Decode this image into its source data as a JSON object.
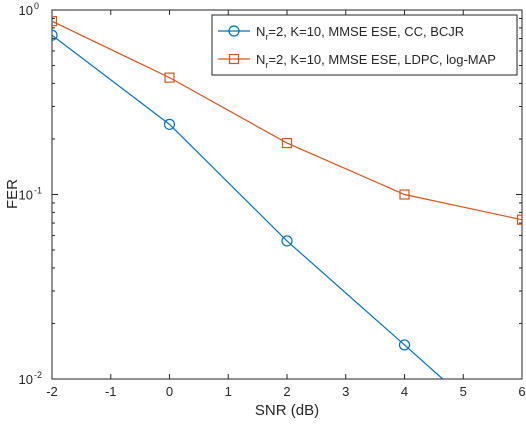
{
  "chart_data": {
    "type": "line",
    "title": "",
    "xlabel": "SNR (dB)",
    "ylabel": "FER",
    "xlim": [
      -2,
      6
    ],
    "ylim": [
      0.01,
      1
    ],
    "yscale": "log",
    "grid": false,
    "legend_position": "top-right",
    "x_ticks": [
      -2,
      -1,
      0,
      1,
      2,
      3,
      4,
      5,
      6
    ],
    "x_tick_labels": [
      "-2",
      "-1",
      "0",
      "1",
      "2",
      "3",
      "4",
      "5",
      "6"
    ],
    "y_ticks": [
      {
        "value": 1,
        "base": "10",
        "exp": "0"
      },
      {
        "value": 0.1,
        "base": "10",
        "exp": "-1"
      },
      {
        "value": 0.01,
        "base": "10",
        "exp": "-2"
      }
    ],
    "series": [
      {
        "name_parts": [
          "N",
          "r",
          "=2, K=10, MMSE ESE, CC, BCJR"
        ],
        "color": "#0072BD",
        "marker": "circle",
        "x": [
          -2,
          0,
          2,
          4,
          4.65
        ],
        "y": [
          0.73,
          0.24,
          0.056,
          0.0153,
          0.01
        ],
        "marker_count": 4
      },
      {
        "name_parts": [
          "N",
          "r",
          "=2, K=10, MMSE ESE, LDPC, log-MAP"
        ],
        "color": "#D95319",
        "marker": "square",
        "x": [
          -2,
          0,
          2,
          4,
          6
        ],
        "y": [
          0.87,
          0.43,
          0.19,
          0.1,
          0.073
        ],
        "marker_count": 5
      }
    ]
  }
}
